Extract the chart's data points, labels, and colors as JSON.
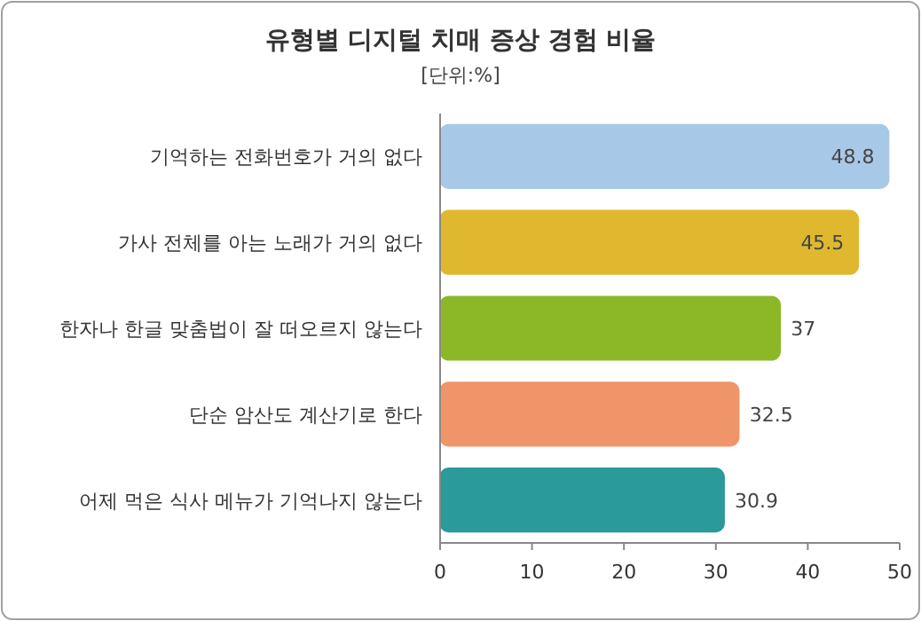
{
  "chart_data": {
    "type": "bar",
    "orientation": "horizontal",
    "title": "유형별 디지털 치매 증상 경험 비율",
    "subtitle": "[단위:%]",
    "categories": [
      "기억하는 전화번호가 거의 없다",
      "가사 전체를 아는 노래가 거의 없다",
      "한자나 한글 맞춤법이 잘 떠오르지 않는다",
      "단순 암산도 계산기로 한다",
      "어제 먹은 식사 메뉴가 기억나지 않는다"
    ],
    "values": [
      48.8,
      45.5,
      37,
      32.5,
      30.9
    ],
    "colors": [
      "#a8c8e8",
      "#e0b830",
      "#8cb828",
      "#f0956a",
      "#2a9a9a"
    ],
    "xlim": [
      0,
      50
    ],
    "xticks": [
      0,
      10,
      20,
      30,
      40,
      50
    ],
    "data_labels": true
  }
}
